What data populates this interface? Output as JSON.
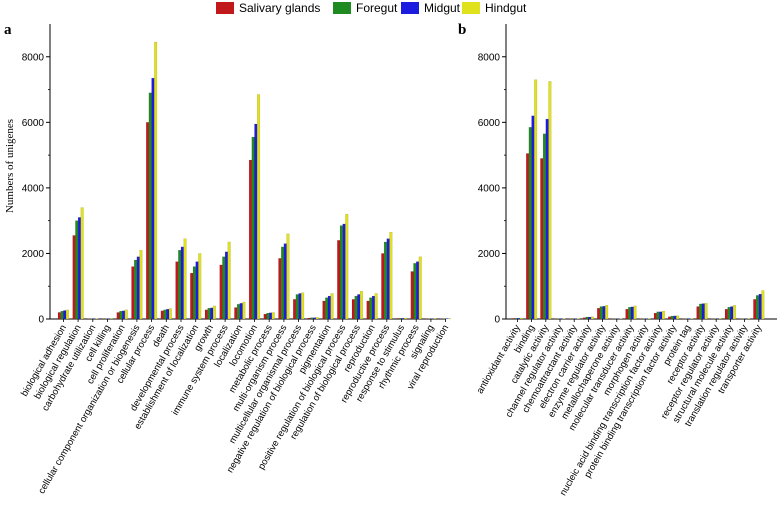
{
  "colors": {
    "salivary": "#c0181b",
    "foregut": "#1f8a1f",
    "midgut": "#1c1ce0",
    "hindgut": "#e0e01c",
    "axis": "#000000"
  },
  "legend": {
    "items": [
      "Salivary glands",
      "Foregut",
      "Midgut",
      "Hindgut"
    ]
  },
  "chart_data": [
    {
      "type": "bar",
      "panel_label": "a",
      "ylabel": "Numbers of unigenes",
      "ylim": [
        0,
        9000
      ],
      "yticks": [
        0,
        2000,
        4000,
        6000,
        8000
      ],
      "series_names": [
        "Salivary glands",
        "Foregut",
        "Midgut",
        "Hindgut"
      ],
      "categories": [
        "biological adhesion",
        "biological regulation",
        "carbohydrate utilization",
        "cell killing",
        "cell proliferation",
        "cellular component organization or biogenesis",
        "cellular process",
        "death",
        "developmental process",
        "establishment of localization",
        "growth",
        "immune system process",
        "localization",
        "locomotion",
        "metabolic process",
        "multi-organism process",
        "multicellular organismal process",
        "negative regulation of biological process",
        "pigmentation",
        "positive regulation of biological process",
        "regulation of biological process",
        "reproduction",
        "reproductive process",
        "response to stimulus",
        "rhythmic process",
        "signaling",
        "viral reproduction"
      ],
      "values": [
        [
          200,
          240,
          260,
          280
        ],
        [
          2550,
          3000,
          3100,
          3400
        ],
        [
          5,
          5,
          5,
          8
        ],
        [
          10,
          15,
          15,
          20
        ],
        [
          200,
          240,
          250,
          280
        ],
        [
          1600,
          1800,
          1900,
          2100
        ],
        [
          6000,
          6900,
          7350,
          8450
        ],
        [
          250,
          280,
          300,
          320
        ],
        [
          1750,
          2100,
          2200,
          2450
        ],
        [
          1400,
          1600,
          1750,
          2000
        ],
        [
          280,
          330,
          340,
          400
        ],
        [
          1650,
          1900,
          2050,
          2350
        ],
        [
          350,
          450,
          480,
          520
        ],
        [
          4850,
          5550,
          5950,
          6850
        ],
        [
          150,
          180,
          190,
          200
        ],
        [
          1850,
          2200,
          2300,
          2600
        ],
        [
          600,
          750,
          780,
          800
        ],
        [
          30,
          40,
          40,
          50
        ],
        [
          550,
          650,
          700,
          780
        ],
        [
          2400,
          2850,
          2900,
          3200
        ],
        [
          600,
          700,
          750,
          850
        ],
        [
          550,
          650,
          700,
          780
        ],
        [
          2000,
          2350,
          2450,
          2650
        ],
        [
          20,
          25,
          25,
          30
        ],
        [
          1450,
          1700,
          1750,
          1900
        ],
        [
          10,
          15,
          15,
          20
        ],
        [
          5,
          5,
          5,
          10
        ]
      ]
    },
    {
      "type": "bar",
      "panel_label": "b",
      "ylabel": "",
      "ylim": [
        0,
        9000
      ],
      "yticks": [
        0,
        2000,
        4000,
        6000,
        8000
      ],
      "series_names": [
        "Salivary glands",
        "Foregut",
        "Midgut",
        "Hindgut"
      ],
      "categories": [
        "antioxidant activity",
        "binding",
        "catalytic activity",
        "channel regulator activity",
        "chemoattractant activity",
        "electron carrier activity",
        "enzyme regulator activity",
        "metallochaperone activity",
        "molecular transducer activity",
        "morphogen activity",
        "nucleic acid binding transcription factor activity",
        "protein binding transcription factor activity",
        "protein tag",
        "receptor activity",
        "receptor regulator activity",
        "structural molecule activity",
        "translation regulator activity",
        "transporter activity"
      ],
      "values": [
        [
          20,
          25,
          25,
          30
        ],
        [
          5050,
          5850,
          6200,
          7300
        ],
        [
          4900,
          5650,
          6100,
          7250
        ],
        [
          5,
          8,
          8,
          10
        ],
        [
          10,
          10,
          10,
          15
        ],
        [
          40,
          60,
          60,
          70
        ],
        [
          330,
          380,
          390,
          420
        ],
        [
          10,
          10,
          10,
          15
        ],
        [
          300,
          360,
          370,
          400
        ],
        [
          5,
          5,
          5,
          10
        ],
        [
          180,
          220,
          220,
          240
        ],
        [
          70,
          90,
          95,
          100
        ],
        [
          5,
          5,
          5,
          10
        ],
        [
          380,
          460,
          470,
          480
        ],
        [
          10,
          15,
          15,
          20
        ],
        [
          300,
          360,
          380,
          420
        ],
        [
          10,
          15,
          15,
          20
        ],
        [
          600,
          720,
          760,
          870
        ]
      ]
    }
  ]
}
